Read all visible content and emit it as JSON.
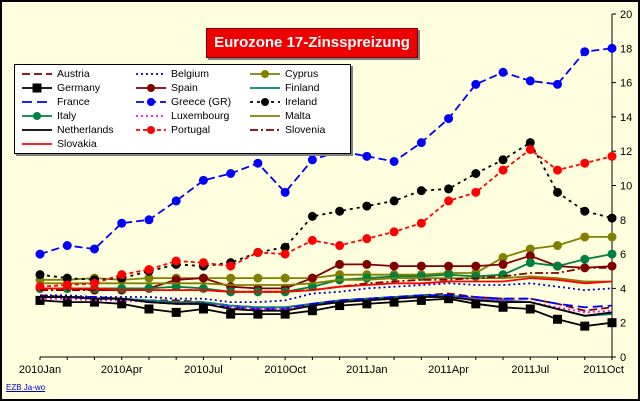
{
  "chart_data": {
    "type": "line",
    "title": "Eurozone 17-Zinsspreizung",
    "xlabel": "",
    "ylabel": "",
    "ylim": [
      0,
      20
    ],
    "yticks": [
      0,
      2,
      4,
      6,
      8,
      10,
      12,
      14,
      16,
      18,
      20
    ],
    "grid": false,
    "legend_position": "top-left",
    "x_categories": [
      "2010Jan",
      "2010Feb",
      "2010Mar",
      "2010Apr",
      "2010May",
      "2010Jun",
      "2010Jul",
      "2010Aug",
      "2010Sep",
      "2010Oct",
      "2010Nov",
      "2010Dec",
      "2011Jan",
      "2011Feb",
      "2011Mar",
      "2011Apr",
      "2011May",
      "2011Jun",
      "2011Jul",
      "2011Aug",
      "2011Sep",
      "2011Oct"
    ],
    "x_tick_labels": [
      {
        "index": 0,
        "label": "2010Jan"
      },
      {
        "index": 3,
        "label": "2010Apr"
      },
      {
        "index": 6,
        "label": "2010Jul"
      },
      {
        "index": 9,
        "label": "2010Oct"
      },
      {
        "index": 12,
        "label": "2011Jan"
      },
      {
        "index": 15,
        "label": "2011Apr"
      },
      {
        "index": 18,
        "label": "2011Jul"
      },
      {
        "index": 21,
        "label": "2011Oct"
      }
    ],
    "series": [
      {
        "name": "Austria",
        "color": "#800000",
        "dash": "8,4",
        "marker": "none",
        "width": 1.8,
        "values": [
          3.6,
          3.5,
          3.5,
          3.4,
          3.3,
          3.3,
          3.2,
          3.0,
          2.9,
          2.9,
          3.1,
          3.3,
          3.4,
          3.5,
          3.6,
          3.7,
          3.5,
          3.4,
          3.4,
          3.1,
          2.7,
          2.9
        ]
      },
      {
        "name": "Belgium",
        "color": "#0000cc",
        "dash": "2,3",
        "marker": "none",
        "width": 1.8,
        "values": [
          3.6,
          3.6,
          3.5,
          3.5,
          3.5,
          3.4,
          3.4,
          3.2,
          3.2,
          3.3,
          3.7,
          3.8,
          4.0,
          4.1,
          4.2,
          4.3,
          4.2,
          4.2,
          4.3,
          4.1,
          3.9,
          4.0
        ]
      },
      {
        "name": "Cyprus",
        "color": "#808000",
        "dash": "",
        "marker": "circle",
        "width": 1.8,
        "values": [
          4.5,
          4.5,
          4.6,
          4.5,
          4.6,
          4.6,
          4.6,
          4.6,
          4.6,
          4.6,
          4.6,
          4.8,
          4.8,
          4.8,
          4.8,
          4.9,
          4.9,
          5.8,
          6.3,
          6.5,
          7.0,
          7.0
        ]
      },
      {
        "name": "Germany",
        "color": "#000000",
        "dash": "",
        "marker": "square",
        "width": 1.8,
        "values": [
          3.3,
          3.2,
          3.2,
          3.1,
          2.8,
          2.6,
          2.8,
          2.5,
          2.5,
          2.5,
          2.7,
          3.0,
          3.1,
          3.2,
          3.3,
          3.4,
          3.1,
          2.9,
          2.8,
          2.2,
          1.8,
          2.0
        ]
      },
      {
        "name": "Spain",
        "color": "#800000",
        "dash": "",
        "marker": "circle",
        "width": 1.8,
        "values": [
          4.0,
          4.0,
          3.9,
          3.9,
          4.0,
          4.5,
          4.6,
          4.1,
          4.0,
          4.0,
          4.6,
          5.4,
          5.4,
          5.3,
          5.3,
          5.3,
          5.3,
          5.4,
          5.9,
          5.3,
          5.2,
          5.3
        ]
      },
      {
        "name": "Finland",
        "color": "#008080",
        "dash": "",
        "marker": "none",
        "width": 1.8,
        "values": [
          3.5,
          3.5,
          3.4,
          3.4,
          3.3,
          3.2,
          3.2,
          3.0,
          2.9,
          2.9,
          3.1,
          3.3,
          3.4,
          3.5,
          3.6,
          3.6,
          3.4,
          3.3,
          3.2,
          2.8,
          2.4,
          2.5
        ]
      },
      {
        "name": "France",
        "color": "#0000ff",
        "dash": "10,5",
        "marker": "none",
        "width": 1.8,
        "values": [
          3.5,
          3.5,
          3.5,
          3.4,
          3.2,
          3.1,
          3.1,
          2.9,
          2.8,
          2.8,
          3.1,
          3.3,
          3.4,
          3.5,
          3.6,
          3.6,
          3.5,
          3.4,
          3.4,
          3.1,
          2.9,
          3.0
        ]
      },
      {
        "name": "Greece (GR)",
        "color": "#0000ff",
        "dash": "8,4",
        "marker": "circle",
        "width": 1.8,
        "values": [
          6.0,
          6.5,
          6.3,
          7.8,
          8.0,
          9.1,
          10.3,
          10.7,
          11.3,
          9.6,
          11.5,
          12.0,
          11.7,
          11.4,
          12.5,
          13.9,
          15.9,
          16.6,
          16.1,
          15.9,
          17.8,
          18.0
        ]
      },
      {
        "name": "Ireland",
        "color": "#000000",
        "dash": "3,4",
        "marker": "circle",
        "width": 1.8,
        "values": [
          4.8,
          4.6,
          4.5,
          4.6,
          5.0,
          5.4,
          5.3,
          5.5,
          6.1,
          6.4,
          8.2,
          8.5,
          8.8,
          9.1,
          9.7,
          9.8,
          10.7,
          11.5,
          12.5,
          9.6,
          8.5,
          8.1
        ]
      },
      {
        "name": "Italy",
        "color": "#008040",
        "dash": "",
        "marker": "circle",
        "width": 1.8,
        "values": [
          4.0,
          4.0,
          4.0,
          4.0,
          4.0,
          4.1,
          4.0,
          3.8,
          3.8,
          3.8,
          4.1,
          4.5,
          4.6,
          4.7,
          4.7,
          4.8,
          4.7,
          4.8,
          5.5,
          5.3,
          5.7,
          6.0
        ]
      },
      {
        "name": "Luxembourg",
        "color": "#ff00ff",
        "dash": "2,3",
        "marker": "none",
        "width": 1.8,
        "values": [
          3.4,
          3.4,
          3.3,
          3.3,
          3.2,
          3.1,
          3.1,
          2.9,
          2.8,
          2.8,
          3.0,
          3.2,
          3.3,
          3.4,
          3.5,
          3.5,
          3.4,
          3.3,
          3.2,
          2.9,
          2.6,
          2.7
        ]
      },
      {
        "name": "Malta",
        "color": "#808000",
        "dash": "",
        "marker": "none",
        "width": 1.8,
        "values": [
          4.3,
          4.3,
          4.3,
          4.3,
          4.3,
          4.3,
          4.3,
          4.2,
          4.2,
          4.2,
          4.3,
          4.5,
          4.5,
          4.6,
          4.6,
          4.6,
          4.6,
          4.6,
          4.7,
          4.6,
          4.4,
          4.4
        ]
      },
      {
        "name": "Netherlands",
        "color": "#000000",
        "dash": "",
        "marker": "none",
        "width": 1.8,
        "values": [
          3.5,
          3.5,
          3.4,
          3.4,
          3.2,
          3.1,
          3.1,
          2.8,
          2.7,
          2.7,
          3.0,
          3.2,
          3.3,
          3.4,
          3.5,
          3.5,
          3.3,
          3.2,
          3.2,
          2.8,
          2.4,
          2.6
        ]
      },
      {
        "name": "Portugal",
        "color": "#ff0000",
        "dash": "4,3",
        "marker": "circle",
        "width": 1.8,
        "values": [
          4.1,
          4.2,
          4.3,
          4.8,
          5.1,
          5.6,
          5.5,
          5.3,
          6.1,
          6.0,
          6.8,
          6.5,
          6.9,
          7.3,
          7.8,
          9.1,
          9.6,
          10.9,
          12.1,
          10.9,
          11.3,
          11.7
        ]
      },
      {
        "name": "Slovenia",
        "color": "#800000",
        "dash": "8,3,2,3",
        "marker": "none",
        "width": 1.8,
        "values": [
          3.9,
          3.9,
          3.9,
          3.9,
          3.9,
          3.9,
          3.9,
          3.8,
          3.8,
          3.8,
          3.9,
          4.1,
          4.3,
          4.4,
          4.5,
          4.5,
          4.6,
          4.7,
          4.9,
          4.9,
          5.2,
          5.2
        ]
      },
      {
        "name": "Slovakia",
        "color": "#ff0000",
        "dash": "",
        "marker": "none",
        "width": 1.8,
        "values": [
          4.0,
          4.0,
          4.0,
          3.9,
          3.9,
          3.9,
          3.9,
          3.8,
          3.8,
          3.8,
          3.9,
          4.1,
          4.2,
          4.3,
          4.3,
          4.4,
          4.4,
          4.4,
          4.6,
          4.5,
          4.3,
          4.4
        ]
      }
    ]
  },
  "footer": {
    "source": "EZB Ja-wo"
  }
}
